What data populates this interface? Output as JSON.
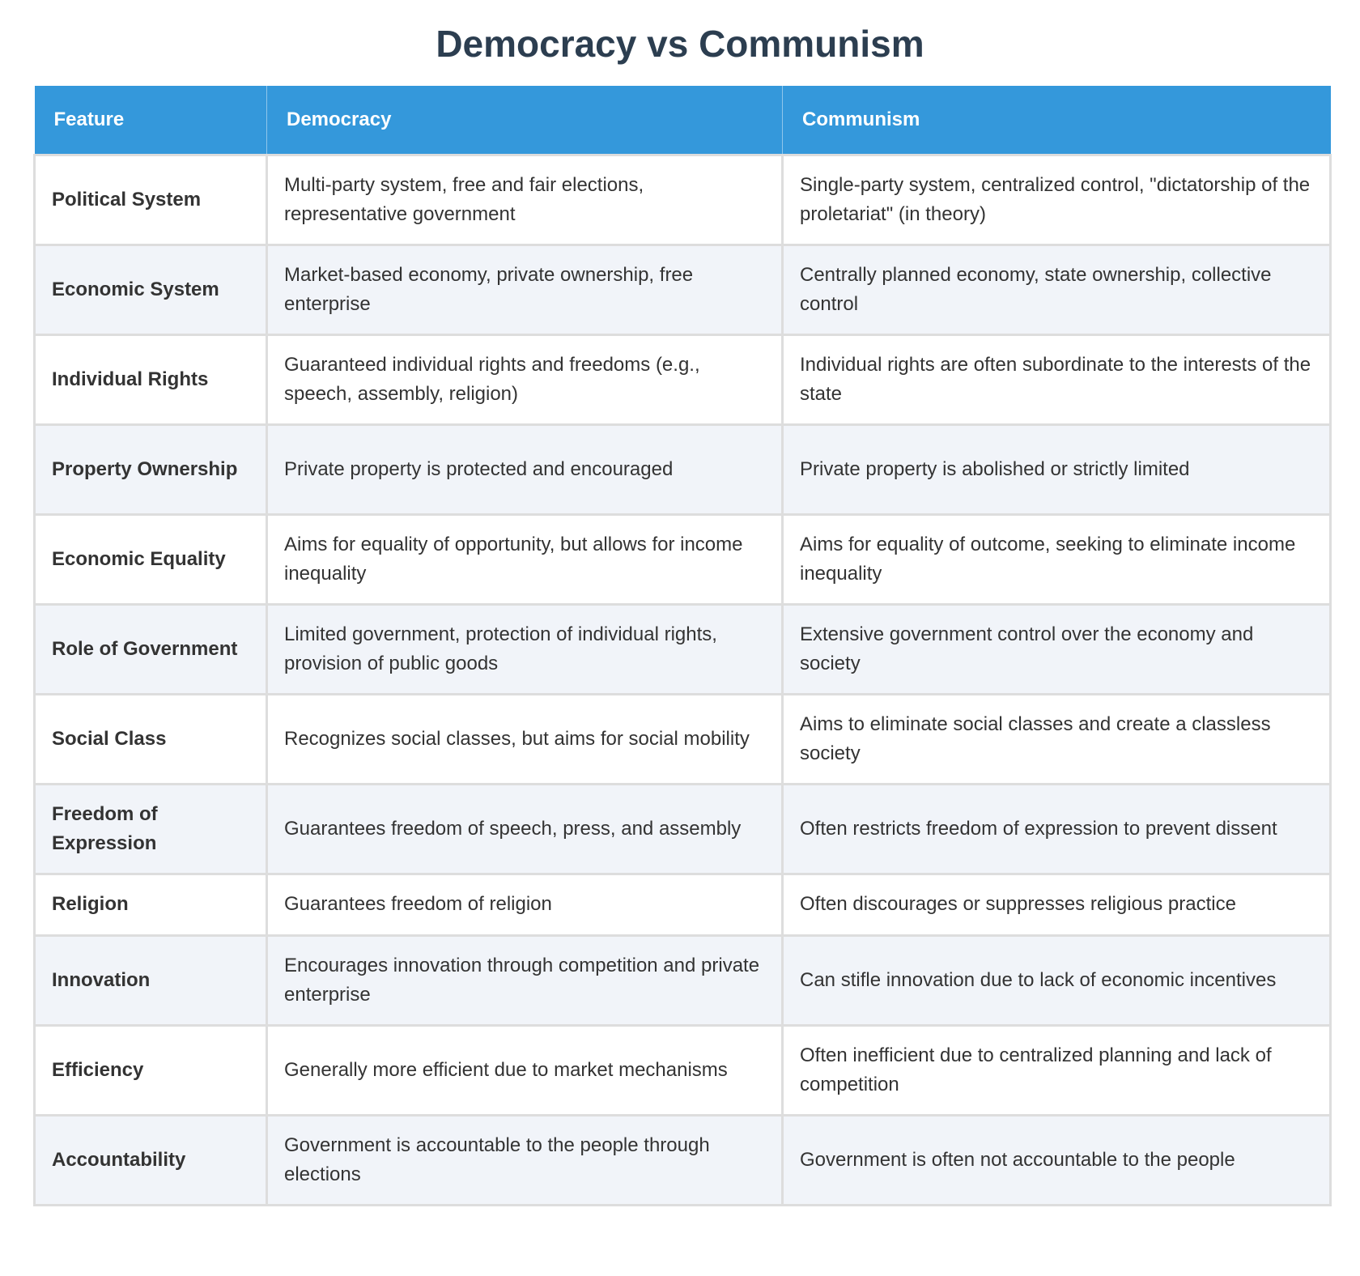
{
  "title": "Democracy vs Communism",
  "table": {
    "headers": [
      "Feature",
      "Democracy",
      "Communism"
    ],
    "rows": [
      {
        "feature": "Political System",
        "democracy": "Multi-party system, free and fair elections, representative government",
        "communism": "Single-party system, centralized control, \"dictatorship of the proletariat\" (in theory)"
      },
      {
        "feature": "Economic System",
        "democracy": "Market-based economy, private ownership, free enterprise",
        "communism": "Centrally planned economy, state ownership, collective control"
      },
      {
        "feature": "Individual Rights",
        "democracy": "Guaranteed individual rights and freedoms (e.g., speech, assembly, religion)",
        "communism": "Individual rights are often subordinate to the interests of the state"
      },
      {
        "feature": "Property Ownership",
        "democracy": "Private property is protected and encouraged",
        "communism": "Private property is abolished or strictly limited"
      },
      {
        "feature": "Economic Equality",
        "democracy": "Aims for equality of opportunity, but allows for income inequality",
        "communism": "Aims for equality of outcome, seeking to eliminate income inequality"
      },
      {
        "feature": "Role of Government",
        "democracy": "Limited government, protection of individual rights, provision of public goods",
        "communism": "Extensive government control over the economy and society"
      },
      {
        "feature": "Social Class",
        "democracy": "Recognizes social classes, but aims for social mobility",
        "communism": "Aims to eliminate social classes and create a classless society"
      },
      {
        "feature": "Freedom of Expression",
        "democracy": "Guarantees freedom of speech, press, and assembly",
        "communism": "Often restricts freedom of expression to prevent dissent"
      },
      {
        "feature": "Religion",
        "democracy": "Guarantees freedom of religion",
        "communism": "Often discourages or suppresses religious practice"
      },
      {
        "feature": "Innovation",
        "democracy": "Encourages innovation through competition and private enterprise",
        "communism": "Can stifle innovation due to lack of economic incentives"
      },
      {
        "feature": "Efficiency",
        "democracy": "Generally more efficient due to market mechanisms",
        "communism": "Often inefficient due to centralized planning and lack of competition"
      },
      {
        "feature": "Accountability",
        "democracy": "Government is accountable to the people through elections",
        "communism": "Government is often not accountable to the people"
      }
    ]
  },
  "colors": {
    "title": "#2c3e50",
    "header_bg": "#3498db",
    "header_text": "#ffffff",
    "border": "#dddddd",
    "stripe": "#f1f4f9",
    "text": "#333333"
  }
}
